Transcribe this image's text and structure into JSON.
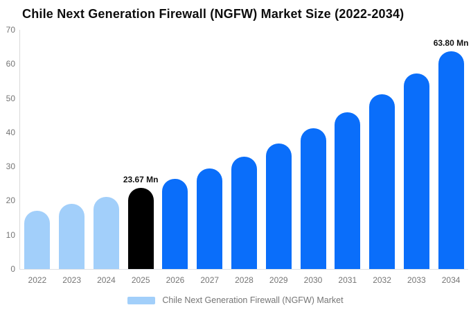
{
  "chart_data": {
    "type": "bar",
    "title": "Chile Next Generation Firewall (NGFW) Market Size (2022-2034)",
    "unit": "Mn",
    "categories": [
      "2022",
      "2023",
      "2024",
      "2025",
      "2026",
      "2027",
      "2028",
      "2029",
      "2030",
      "2031",
      "2032",
      "2033",
      "2034"
    ],
    "values": [
      17.0,
      19.0,
      21.2,
      23.67,
      26.4,
      29.5,
      32.9,
      36.8,
      41.1,
      45.9,
      51.2,
      57.2,
      63.8
    ],
    "bar_labels": [
      null,
      null,
      null,
      "23.67 Mn",
      null,
      null,
      null,
      null,
      null,
      null,
      null,
      null,
      "63.80 Mn"
    ],
    "color_groups": [
      "historical",
      "historical",
      "historical",
      "base",
      "forecast",
      "forecast",
      "forecast",
      "forecast",
      "forecast",
      "forecast",
      "forecast",
      "forecast",
      "forecast"
    ],
    "series_colors": {
      "historical": "#a2cffa",
      "base": "#000000",
      "forecast": "#0a6efa"
    },
    "xlabel": "",
    "ylabel": "",
    "ylim": [
      0,
      70
    ],
    "yticks": [
      0,
      10,
      20,
      30,
      40,
      50,
      60,
      70
    ],
    "grid": false,
    "legend_position": "bottom",
    "legend": [
      {
        "label": "Chile Next Generation Firewall (NGFW) Market",
        "color": "#a2cffa"
      }
    ],
    "axis_line_color": "#d9d9d9",
    "baseline_color": "#dde1e5",
    "tick_label_color": "#757575"
  }
}
